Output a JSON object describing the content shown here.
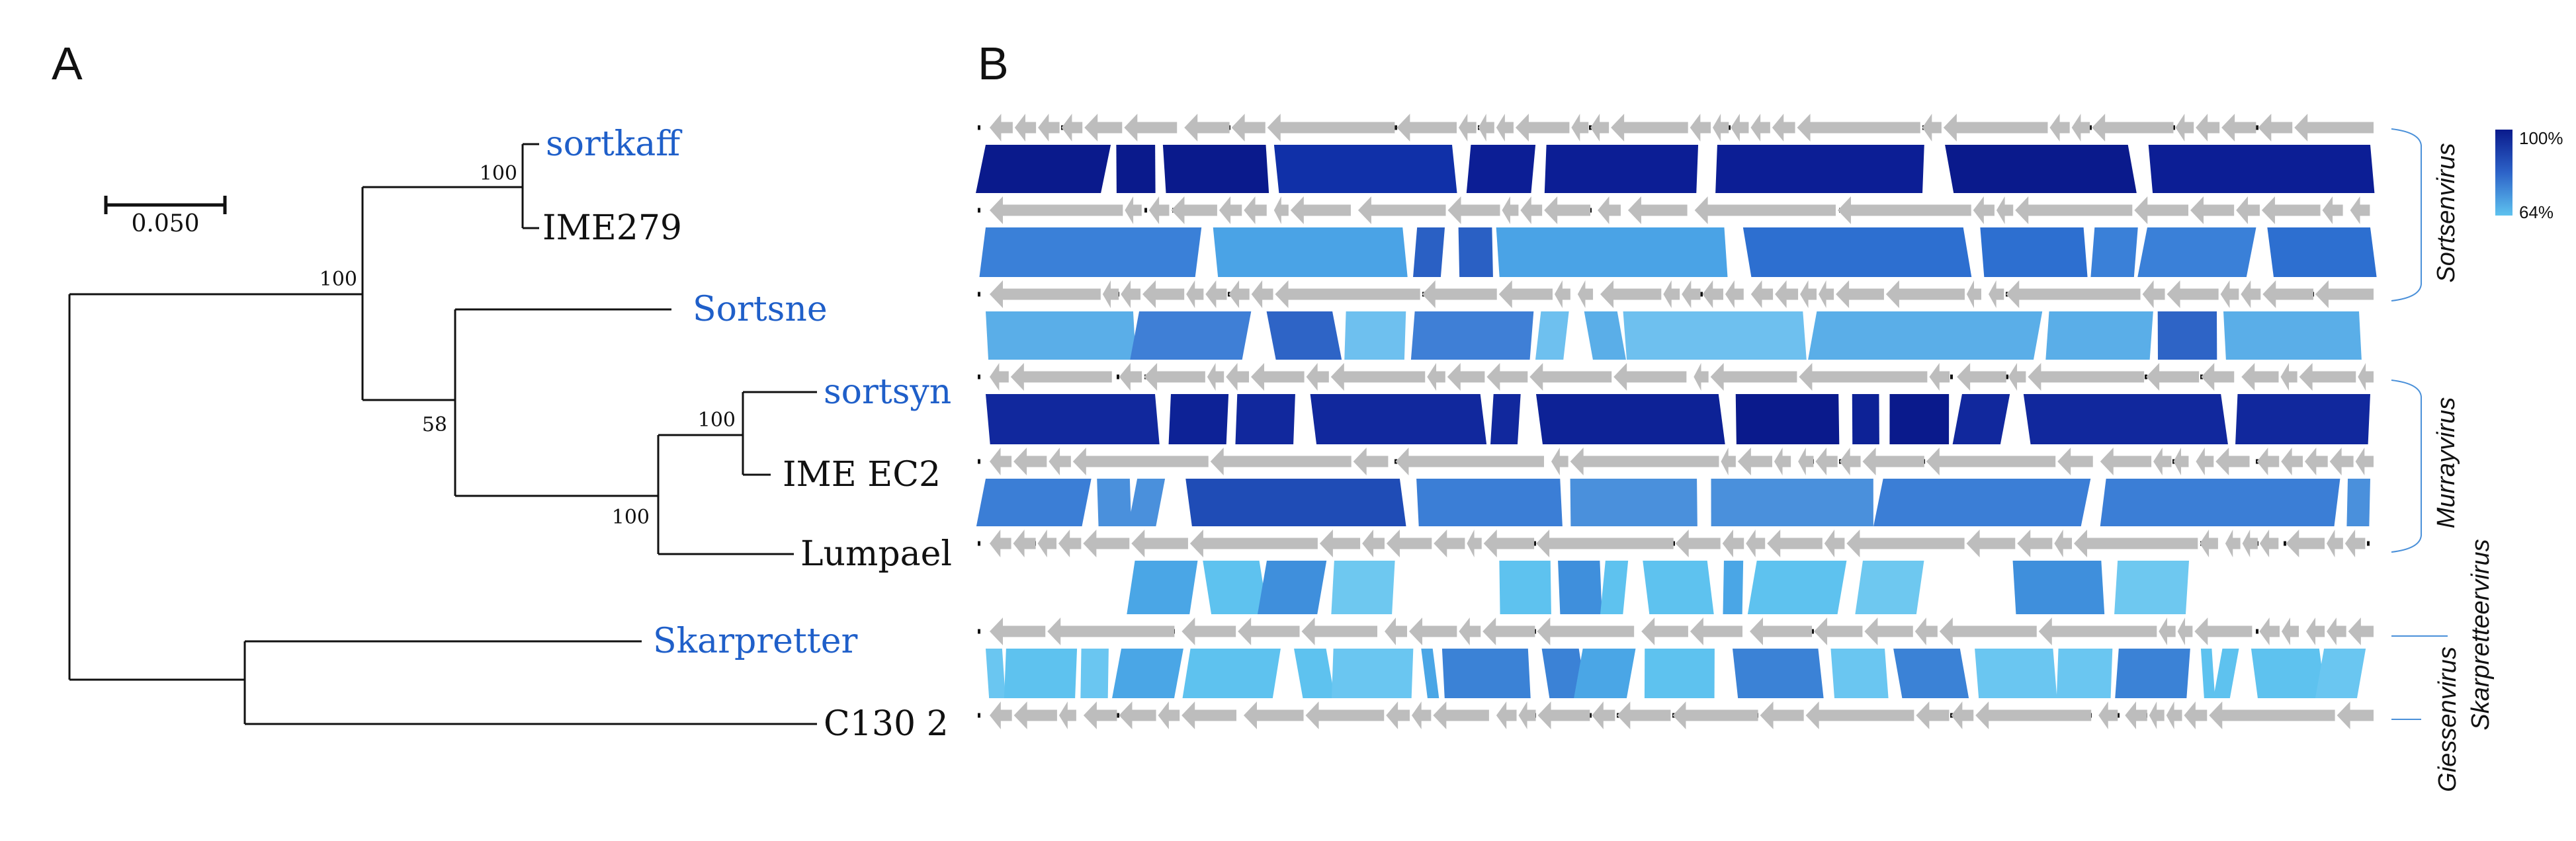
{
  "panel_labels": {
    "a": "A",
    "b": "B"
  },
  "colors": {
    "highlight": "#1f5fc9",
    "default_label": "#111111",
    "gene": "#bdbdbd",
    "identity_high": "#0a1a8c",
    "identity_low": "#5ec2ef"
  },
  "tree": {
    "scale_bar_label": "0.050",
    "taxa": [
      {
        "name": "sortkaff",
        "highlight": true
      },
      {
        "name": "IME279",
        "highlight": false
      },
      {
        "name": "Sortsne",
        "highlight": true
      },
      {
        "name": "sortsyn",
        "highlight": true
      },
      {
        "name": "IME EC2",
        "highlight": false
      },
      {
        "name": "Lumpael",
        "highlight": false
      },
      {
        "name": "Skarpretter",
        "highlight": true
      },
      {
        "name": "C130 2",
        "highlight": false
      }
    ],
    "bootstrap": [
      "100",
      "100",
      "58",
      "100",
      "100"
    ]
  },
  "legend": {
    "max_label": "100%",
    "min_label": "64%"
  },
  "genera": [
    "Sortsenvirus",
    "Murrayvirus",
    "Skarpretteervirus",
    "Giessenvirus"
  ],
  "genome_count": 8,
  "comparison_count": 7
}
